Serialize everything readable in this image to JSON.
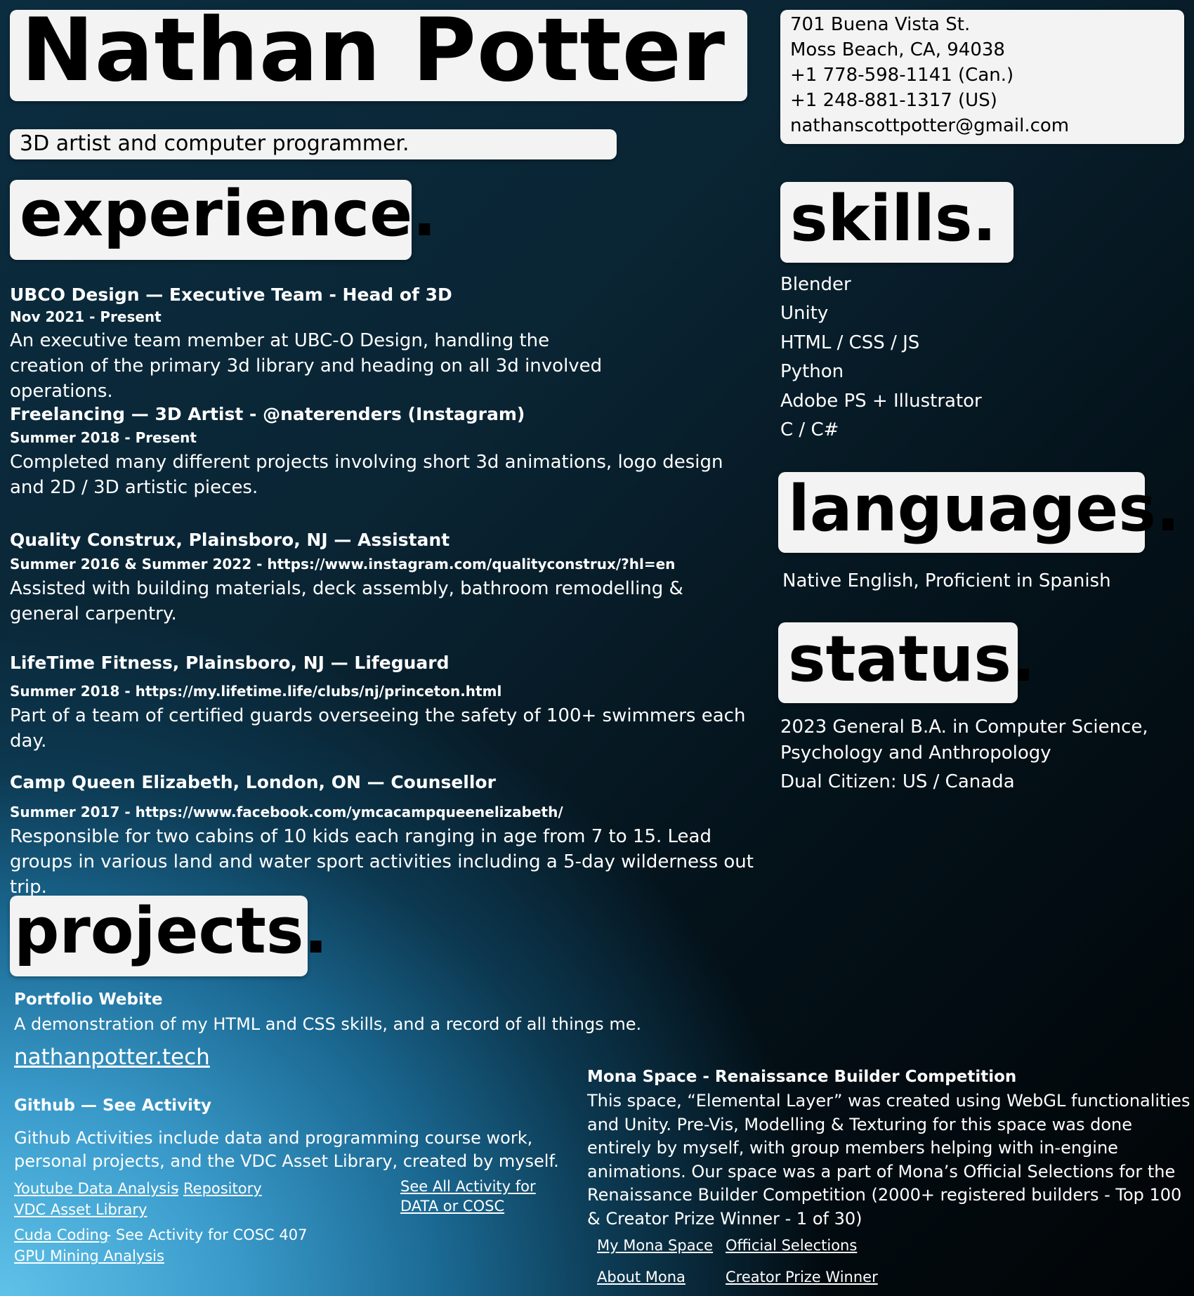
{
  "header": {
    "name": "Nathan Potter",
    "tagline": "3D artist and computer programmer."
  },
  "contact": {
    "address1": "701 Buena Vista St.",
    "address2": "Moss Beach, CA, 94038",
    "phone_can": "+1 778-598-1141 (Can.)",
    "phone_us": "+1 248-881-1317 (US)",
    "email": "nathanscottpotter@gmail.com"
  },
  "headings": {
    "experience": "experience.",
    "skills": "skills.",
    "languages": "languages.",
    "status": "status.",
    "projects": "projects."
  },
  "experience": [
    {
      "title": "UBCO Design — Executive Team - Head of 3D",
      "date": "Nov 2021 - Present",
      "desc": "An executive team member at UBC-O Design, handling the creation of the primary 3d library and heading on all 3d involved operations."
    },
    {
      "title": "Freelancing — 3D Artist - @naterenders (Instagram)",
      "date": "Summer 2018 - Present",
      "desc": "Completed many different projects involving short 3d animations, logo design and 2D / 3D artistic pieces."
    },
    {
      "title": "Quality Construx, Plainsboro, NJ — Assistant",
      "date": "Summer 2016 & Summer 2022 - https://www.instagram.com/qualityconstrux/?hl=en",
      "desc": "Assisted with building materials, deck assembly, bathroom remodelling & general carpentry."
    },
    {
      "title": "LifeTime Fitness, Plainsboro, NJ — Lifeguard",
      "date": "Summer 2018 - https://my.lifetime.life/clubs/nj/princeton.html",
      "desc": "Part of a team of certified guards overseeing the safety of 100+ swimmers each day."
    },
    {
      "title": "Camp Queen Elizabeth, London, ON — Counsellor",
      "date": "Summer 2017 - https://www.facebook.com/ymcacampqueenelizabeth/",
      "desc": "Responsible for two cabins of 10 kids each ranging in age from 7 to 15. Lead groups in various land and water sport activities including a 5-day wilderness out trip."
    }
  ],
  "skills": [
    "Blender",
    "Unity",
    "HTML / CSS / JS",
    "Python",
    "Adobe PS + Illustrator",
    "C / C#"
  ],
  "languages_text": "Native English, Proficient in Spanish",
  "status": {
    "degree_line1": "2023 General B.A. in Computer Science,",
    "degree_line2": "Psychology and Anthropology",
    "citizenship": "Dual Citizen: US / Canada"
  },
  "projects": {
    "portfolio": {
      "title": "Portfolio Webite",
      "desc": "A demonstration of my HTML and CSS skills, and a record of all things me.",
      "link": "nathanpotter.tech"
    },
    "github": {
      "title": "Github — See Activity",
      "desc": "Github Activities include data and programming course work, personal projects, and the VDC Asset Library, created by myself.",
      "youtube_link": "Youtube Data Analysis",
      "dash": " - ",
      "repo_link": "Repository",
      "vdc_link": "VDC Asset Library",
      "cuda_link": "Cuda Coding",
      "cuda_suffix": " - See Activity for COSC 407",
      "gpu_link": "GPU Mining Analysis",
      "see_all_line1": "See All Activity for",
      "see_all_line2": "DATA or COSC"
    },
    "mona": {
      "title": "Mona Space - Renaissance Builder Competition",
      "desc": "This space, “Elemental Layer” was created using WebGL functionalities and Unity. Pre-Vis, Modelling & Texturing for this space was done entirely by myself, with group members helping with in-engine animations. Our space was a part of Mona’s Official Selections for the Renaissance Builder Competition (2000+ registered builders - Top 100 & Creator Prize Winner - 1 of 30)",
      "link_space": "My Mona Space",
      "link_selections": "Official Selections",
      "link_about": "About Mona",
      "link_prize": "Creator Prize Winner"
    }
  },
  "colors": {
    "box_bg": "#f3f3f3",
    "text_light": "#ffffff",
    "gradient_light": "#5fc2e8",
    "gradient_dark": "#010406"
  }
}
